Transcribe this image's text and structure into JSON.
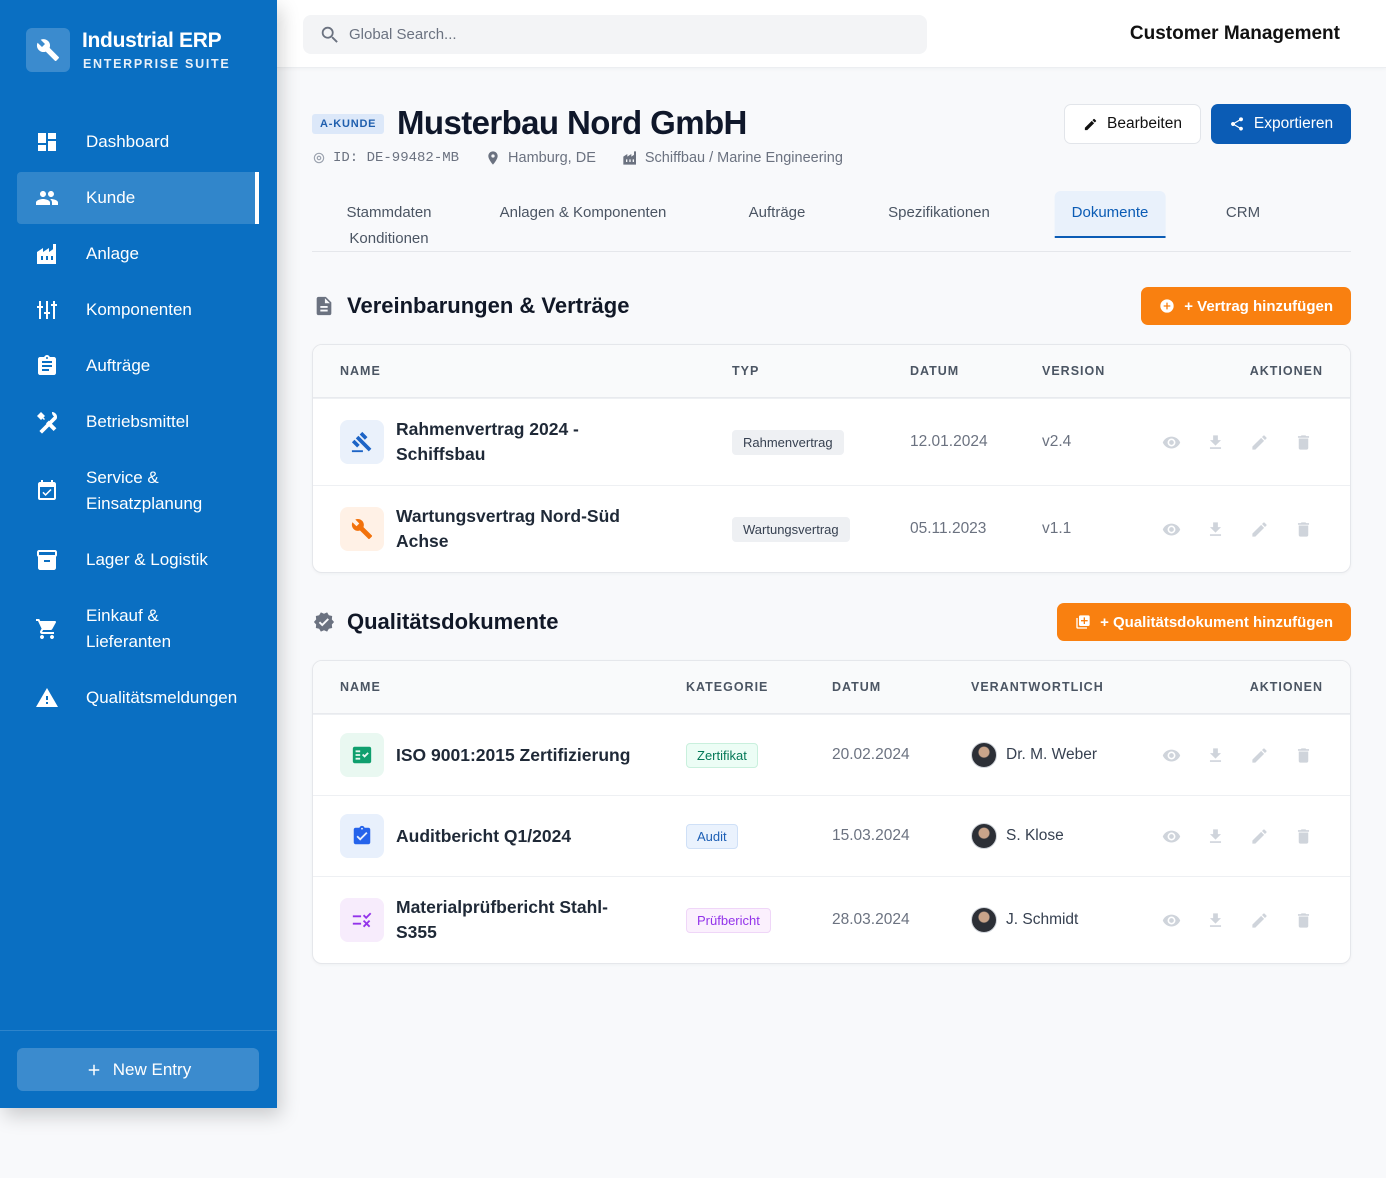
{
  "sidebar": {
    "brand": {
      "title": "Industrial ERP",
      "subtitle": "ENTERPRISE SUITE"
    },
    "nav": [
      "Dashboard",
      "Kunde",
      "Anlage",
      "Komponenten",
      "Aufträge",
      "Betriebsmittel",
      "Service & Einsatzplanung",
      "Lager & Logistik",
      "Einkauf & Lieferanten",
      "Qualitätsmeldungen"
    ],
    "new_entry": "New Entry"
  },
  "header": {
    "search_placeholder": "Global Search...",
    "title": "Customer Management"
  },
  "customer": {
    "badge": "A-KUNDE",
    "name": "Musterbau Nord GmbH",
    "id": "ID: DE-99482-MB",
    "location": "Hamburg, DE",
    "industry": "Schiffbau / Marine Engineering",
    "actions": [
      "Bearbeiten",
      "Exportieren"
    ]
  },
  "tabs": [
    "Stammdaten Konditionen",
    "Anlagen & Komponenten",
    "Aufträge",
    "Spezifikationen",
    "Dokumente",
    "CRM"
  ],
  "contracts": {
    "title": "Vereinbarungen & Verträge",
    "add_button": "+ Vertrag hinzufügen",
    "columns": [
      "NAME",
      "TYP",
      "DATUM",
      "VERSION",
      "AKTIONEN"
    ],
    "rows": [
      {
        "name": "Rahmenvertrag 2024 - Schiffsbau",
        "type": "Rahmenvertrag",
        "date": "12.01.2024",
        "version": "v2.4"
      },
      {
        "name": "Wartungsvertrag Nord-Süd Achse",
        "type": "Wartungsvertrag",
        "date": "05.11.2023",
        "version": "v1.1"
      }
    ]
  },
  "quality_docs": {
    "title": "Qualitätsdokumente",
    "add_button": "+ Qualitätsdokument hinzufügen",
    "columns": [
      "NAME",
      "KATEGORIE",
      "DATUM",
      "VERANTWORTLICH",
      "AKTIONEN"
    ],
    "rows": [
      {
        "name": "ISO 9001:2015 Zertifizierung",
        "category": "Zertifikat",
        "date": "20.02.2024",
        "responsible": "Dr. M. Weber"
      },
      {
        "name": "Auditbericht Q1/2024",
        "category": "Audit",
        "date": "15.03.2024",
        "responsible": "S. Klose"
      },
      {
        "name": "Materialprüfbericht Stahl-S355",
        "category": "Prüfbericht",
        "date": "28.03.2024",
        "responsible": "J. Schmidt"
      }
    ]
  }
}
